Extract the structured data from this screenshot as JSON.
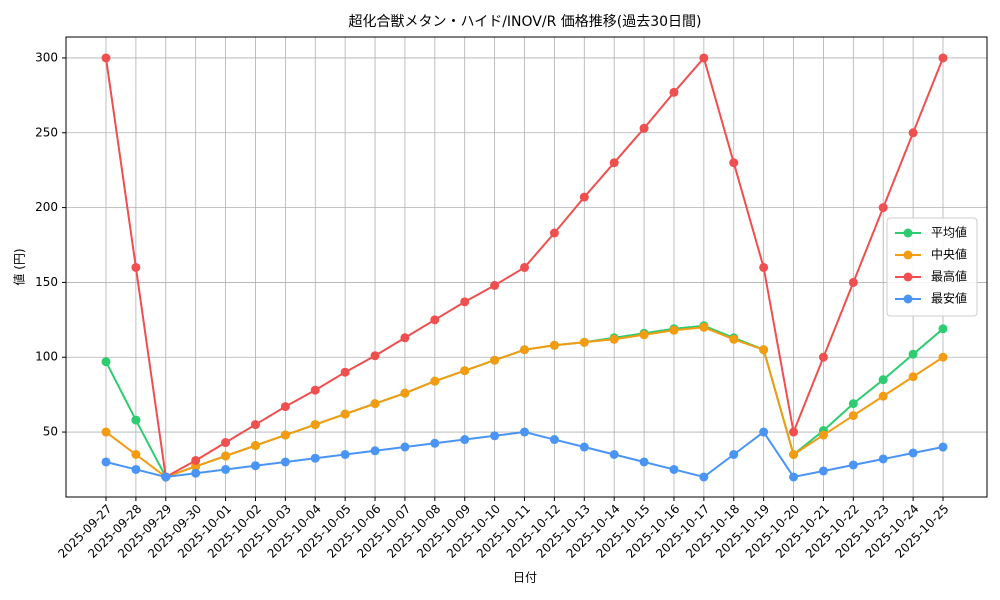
{
  "chart_data": {
    "type": "line",
    "title": "超化合獣メタン・ハイド/INOV/R 価格推移(過去30日間)",
    "x_label": "日付",
    "y_label": "値 (円)",
    "categories": [
      "2025-09-27",
      "2025-09-28",
      "2025-09-29",
      "2025-09-30",
      "2025-10-01",
      "2025-10-02",
      "2025-10-03",
      "2025-10-04",
      "2025-10-05",
      "2025-10-06",
      "2025-10-07",
      "2025-10-08",
      "2025-10-09",
      "2025-10-10",
      "2025-10-11",
      "2025-10-12",
      "2025-10-13",
      "2025-10-14",
      "2025-10-15",
      "2025-10-16",
      "2025-10-17",
      "2025-10-18",
      "2025-10-19",
      "2025-10-20",
      "2025-10-21",
      "2025-10-22",
      "2025-10-23",
      "2025-10-24",
      "2025-10-25"
    ],
    "series": [
      {
        "name": "平均値",
        "color": "#2ecc71",
        "values": [
          97,
          58,
          20,
          27,
          34,
          41,
          48,
          55,
          62,
          69,
          76,
          84,
          91,
          98,
          105,
          108,
          110,
          113,
          116,
          119,
          121,
          113,
          105,
          35,
          51,
          69,
          85,
          102,
          119
        ]
      },
      {
        "name": "中央値",
        "color": "#f39c12",
        "values": [
          50,
          35,
          20,
          27,
          34,
          41,
          48,
          55,
          62,
          69,
          76,
          84,
          91,
          98,
          105,
          108,
          110,
          112,
          115,
          118,
          120,
          112,
          105,
          35,
          48,
          61,
          74,
          87,
          100
        ]
      },
      {
        "name": "最高値",
        "color": "#ef4f4f",
        "values": [
          300,
          160,
          20,
          31,
          43,
          55,
          67,
          78,
          90,
          101,
          113,
          125,
          137,
          148,
          160,
          183,
          207,
          230,
          253,
          277,
          300,
          230,
          160,
          50,
          100,
          150,
          200,
          250,
          300
        ]
      },
      {
        "name": "最安値",
        "color": "#4a94f5",
        "values": [
          30,
          25,
          20,
          22.5,
          25,
          27.5,
          30,
          32.5,
          35,
          37.5,
          40,
          42.5,
          45,
          47.5,
          50,
          45,
          40,
          35,
          30,
          25,
          20,
          35,
          50,
          20,
          24,
          28,
          32,
          36,
          40
        ]
      }
    ],
    "ylim": [
      6.6,
      314
    ],
    "yticks": [
      50,
      100,
      150,
      200,
      250,
      300
    ],
    "grid": true,
    "legend": "center right"
  }
}
